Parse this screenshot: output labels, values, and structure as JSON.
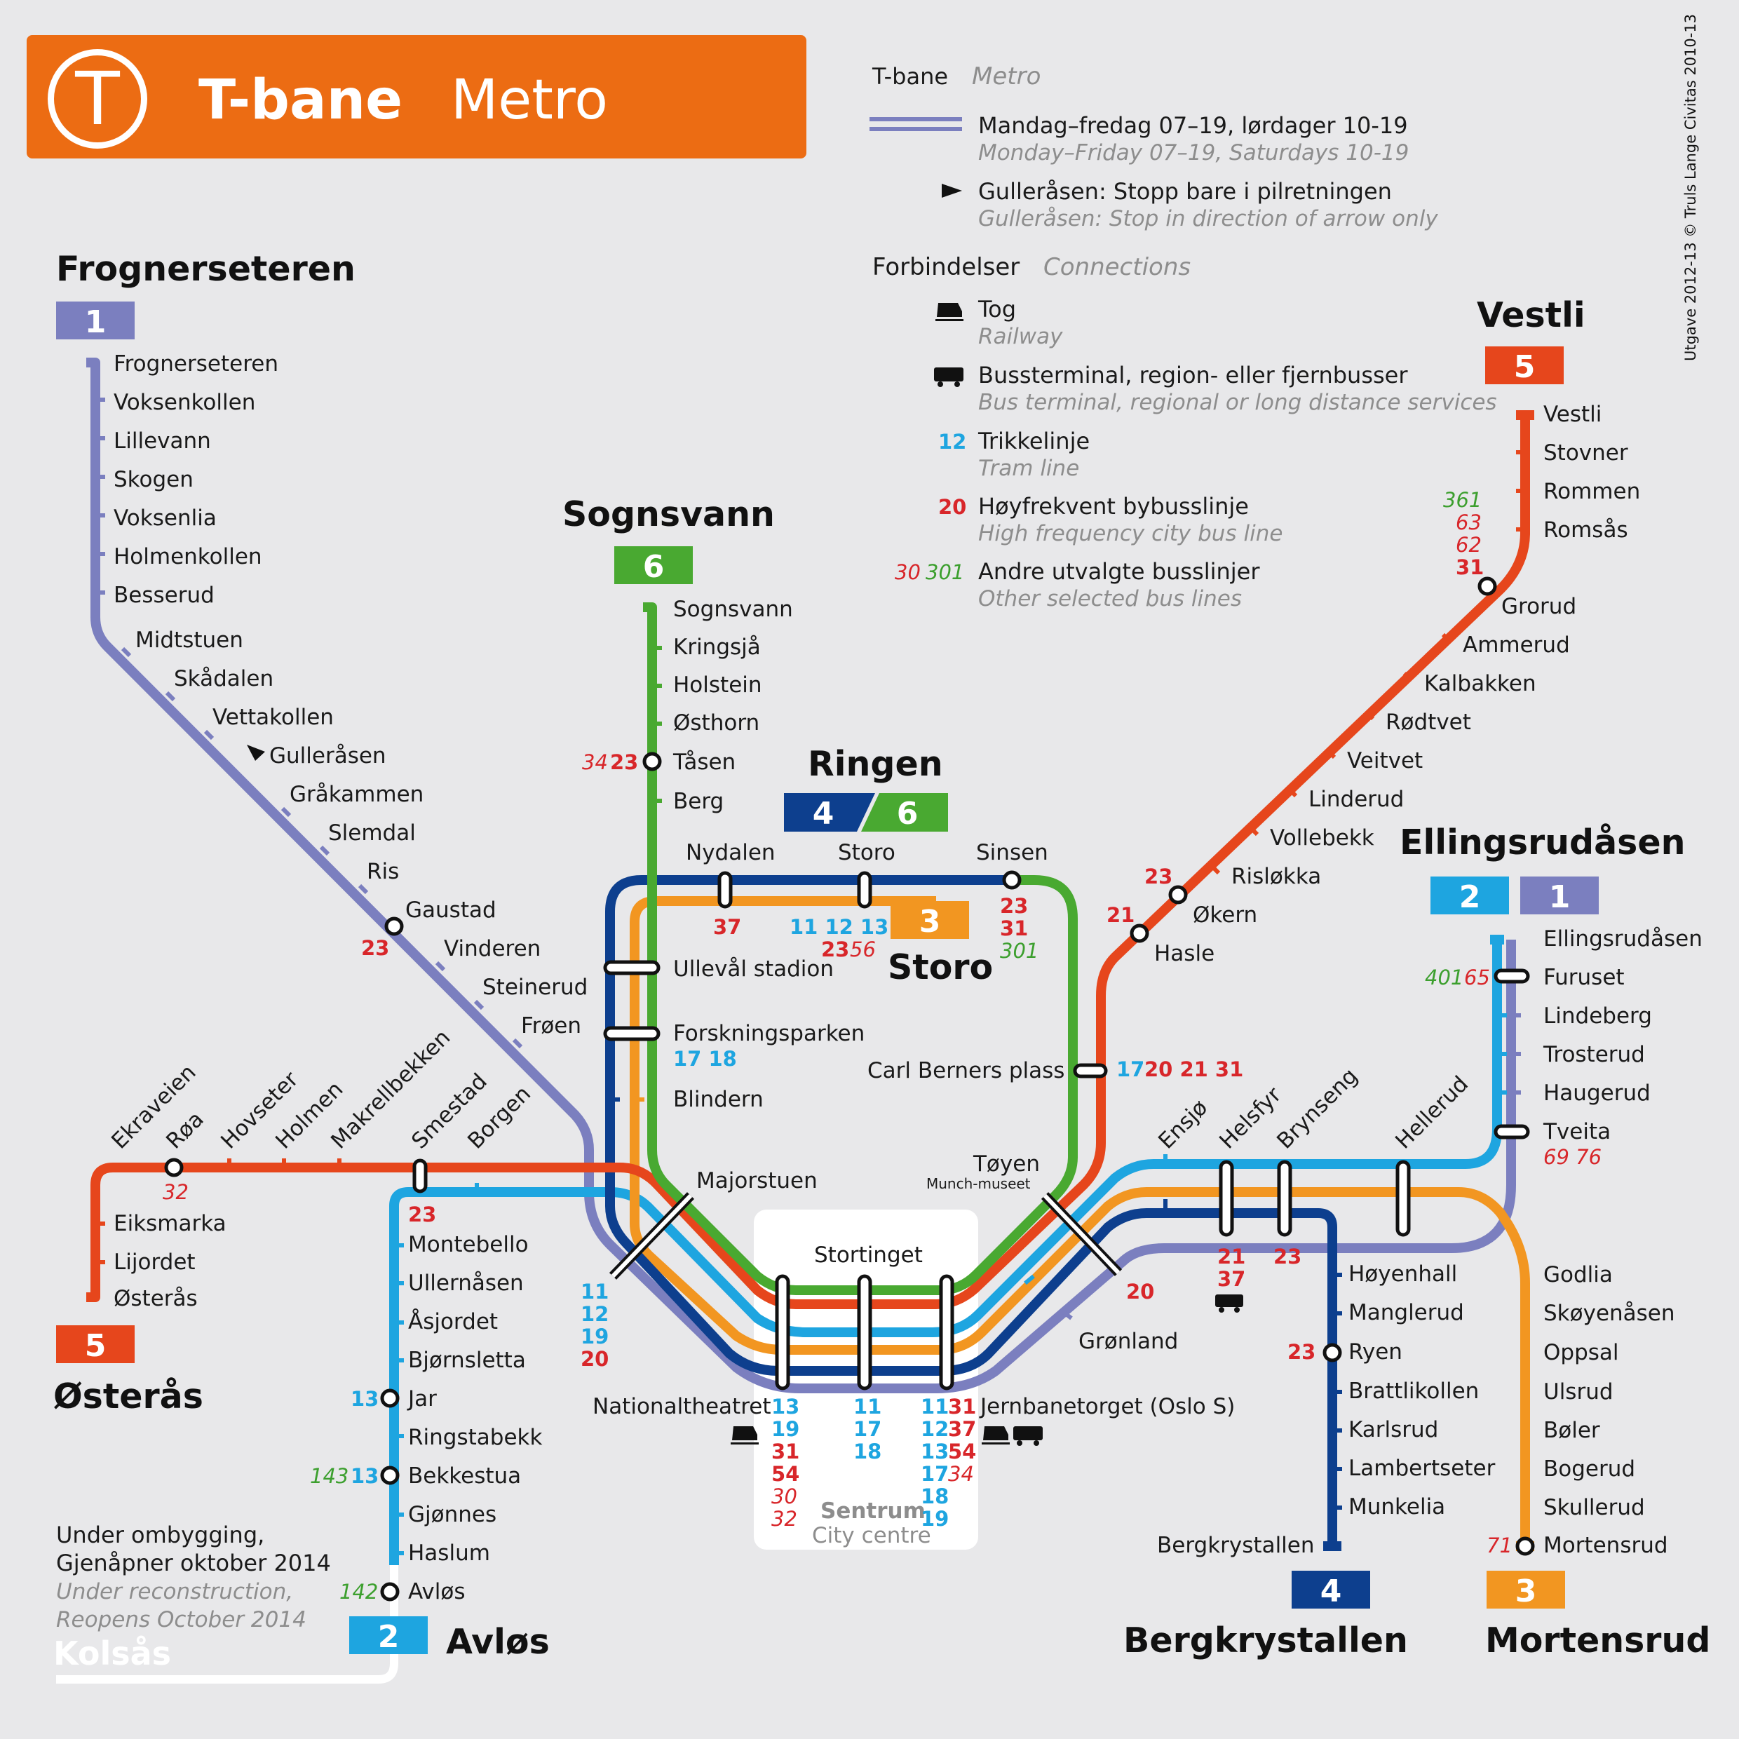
{
  "header": {
    "title_no": "T-bane",
    "title_en": "Metro",
    "logo_letter": "T",
    "brand_color": "#ec6c13"
  },
  "credit": "Utgave 2012-13 © Truls Lange Civitas 2010-13",
  "legend": {
    "head_no": "T-bane",
    "head_en": "Metro",
    "hours_no": "Mandag–fredag 07–19, lørdager 10-19",
    "hours_en": "Monday–Friday 07–19, Saturdays 10-19",
    "arrow_no": "Gulleråsen: Stopp bare i pilretningen",
    "arrow_en": "Gulleråsen: Stop in direction of arrow only",
    "conn_no": "Forbindelser",
    "conn_en": "Connections",
    "rail_no": "Tog",
    "rail_en": "Railway",
    "bus_no": "Bussterminal, region- eller fjernbusser",
    "bus_en": "Bus terminal, regional or long distance services",
    "tram_ex": "12",
    "tram_no": "Trikkelinje",
    "tram_en": "Tram line",
    "hf_ex": "20",
    "hf_no": "Høyfrekvent bybusslinje",
    "hf_en": "High frequency city bus line",
    "oth_ex1": "30",
    "oth_ex2": "301",
    "oth_no": "Andre utvalgte busslinjer",
    "oth_en": "Other selected bus lines"
  },
  "terminals": {
    "frognerseteren": "Frognerseteren",
    "sognsvann": "Sognsvann",
    "ringen": "Ringen",
    "vestli": "Vestli",
    "ellingsrudasen": "Ellingsrudåsen",
    "osteras": "Østerås",
    "avlos": "Avløs",
    "bergkrystallen": "Bergkrystallen",
    "mortensrud": "Mortensrud",
    "storo": "Storo",
    "kolsas": "Kolsås"
  },
  "badges": {
    "l1": "1",
    "l2": "2",
    "l3": "3",
    "l4": "4",
    "l5": "5",
    "l6": "6"
  },
  "line_colors": {
    "l1": "#7b7fbf",
    "l2": "#1ea5e0",
    "l3": "#f29621",
    "l4": "#0d3f8e",
    "l5": "#e6461c",
    "l6": "#49a931"
  },
  "stations": {
    "frognerseteren": "Frognerseteren",
    "voksenkollen": "Voksenkollen",
    "lillevann": "Lillevann",
    "skogen": "Skogen",
    "voksenlia": "Voksenlia",
    "holmenkollen": "Holmenkollen",
    "besserud": "Besserud",
    "midtstuen": "Midtstuen",
    "skadalen": "Skådalen",
    "vettakollen": "Vettakollen",
    "gullerasen": "Gulleråsen",
    "grakammen": "Gråkammen",
    "slemdal": "Slemdal",
    "ris": "Ris",
    "gaustad": "Gaustad",
    "vinderen": "Vinderen",
    "steinerud": "Steinerud",
    "froen": "Frøen",
    "sognsvann": "Sognsvann",
    "kringsja": "Kringsjå",
    "holstein": "Holstein",
    "osthorn": "Østhorn",
    "tasen": "Tåsen",
    "berg": "Berg",
    "nydalen": "Nydalen",
    "storo": "Storo",
    "sinsen": "Sinsen",
    "ulleval": "Ullevål stadion",
    "forskningsparken": "Forskningsparken",
    "blindern": "Blindern",
    "majorstuen": "Majorstuen",
    "carlberner": "Carl Berners plass",
    "toyen": "Tøyen",
    "toyen_sub": "Munch-museet",
    "stortinget": "Stortinget",
    "nationaltheatret": "Nationaltheatret",
    "jernbanetorget": "Jernbanetorget (Oslo S)",
    "gronland": "Grønland",
    "sentrum_no": "Sentrum",
    "sentrum_en": "City centre",
    "vestli": "Vestli",
    "stovner": "Stovner",
    "rommen": "Rommen",
    "romsas": "Romsås",
    "grorud": "Grorud",
    "ammerud": "Ammerud",
    "kalbakken": "Kalbakken",
    "rodtvet": "Rødtvet",
    "veitvet": "Veitvet",
    "linderud": "Linderud",
    "vollebekk": "Vollebekk",
    "risloekka": "Risløkka",
    "okern": "Økern",
    "hasle": "Hasle",
    "ellingsrudasen": "Ellingsrudåsen",
    "furuset": "Furuset",
    "lindeberg": "Lindeberg",
    "trosterud": "Trosterud",
    "haugerud": "Haugerud",
    "tveita": "Tveita",
    "ekraveien": "Ekraveien",
    "roa": "Røa",
    "hovseter": "Hovseter",
    "holmen": "Holmen",
    "makrellbekken": "Makrellbekken",
    "smestad": "Smestad",
    "borgen": "Borgen",
    "eiksmarka": "Eiksmarka",
    "lijordet": "Lijordet",
    "osteras": "Østerås",
    "montebello": "Montebello",
    "ullernasen": "Ullernåsen",
    "asjordet": "Åsjordet",
    "bjornsletta": "Bjørnsletta",
    "jar": "Jar",
    "ringstabekk": "Ringstabekk",
    "bekkestua": "Bekkestua",
    "gjonnes": "Gjønnes",
    "haslum": "Haslum",
    "avlos": "Avløs",
    "ensjo": "Ensjø",
    "helsfyr": "Helsfyr",
    "brynseng": "Brynseng",
    "hellerud": "Hellerud",
    "hoyenhall": "Høyenhall",
    "manglerud": "Manglerud",
    "ryen": "Ryen",
    "brattlikollen": "Brattlikollen",
    "karlsrud": "Karlsrud",
    "lambertseter": "Lambertseter",
    "munkelia": "Munkelia",
    "bergkrystallen": "Bergkrystallen",
    "godlia": "Godlia",
    "skoyenasen": "Skøyenåsen",
    "oppsal": "Oppsal",
    "ulsrud": "Ulsrud",
    "boler": "Bøler",
    "bogerud": "Bogerud",
    "skullerud": "Skullerud",
    "mortensrud": "Mortensrud"
  },
  "note": {
    "no1": "Under ombygging,",
    "no2": "Gjenåpner oktober 2014",
    "en1": "Under reconstruction,",
    "en2": "Reopens October 2014"
  },
  "conn": {
    "gaustad": "23",
    "tasen_a": "34",
    "tasen_b": "23",
    "nydalen": "37",
    "storo_tram": "11 12 13",
    "storo_b1": "23",
    "storo_b2": "56",
    "sinsen1": "23",
    "sinsen2": "31",
    "sinsen3": "301",
    "grorud1": "361",
    "grorud2": "63",
    "grorud3": "62",
    "grorud4": "31",
    "okern": "23",
    "hasle": "21",
    "furuset1": "401",
    "furuset2": "65",
    "tveita": "69 76",
    "carlb_tram": "17",
    "carlb_bus": "20 21 31",
    "forsk": "17 18",
    "roa": "32",
    "smestad": "23",
    "jar": "13",
    "bekk1": "143",
    "bekk2": "13",
    "avlos": "142",
    "maj1": "11",
    "maj2": "12",
    "maj3": "19",
    "maj4": "20",
    "nt1": "13",
    "nt2": "19",
    "nt3": "31",
    "nt4": "54",
    "nt5": "30",
    "nt6": "32",
    "st1": "11",
    "st2": "17",
    "st3": "18",
    "jb1": "11",
    "jb2": "31",
    "jb3": "12",
    "jb4": "37",
    "jb5": "13",
    "jb6": "54",
    "jb7": "17",
    "jb8": "34",
    "jb9": "18",
    "jb10": "19",
    "gronland": "20",
    "helsfyr1": "21",
    "helsfyr2": "37",
    "brynseng": "23",
    "ryen": "23",
    "mortensrud": "71"
  }
}
